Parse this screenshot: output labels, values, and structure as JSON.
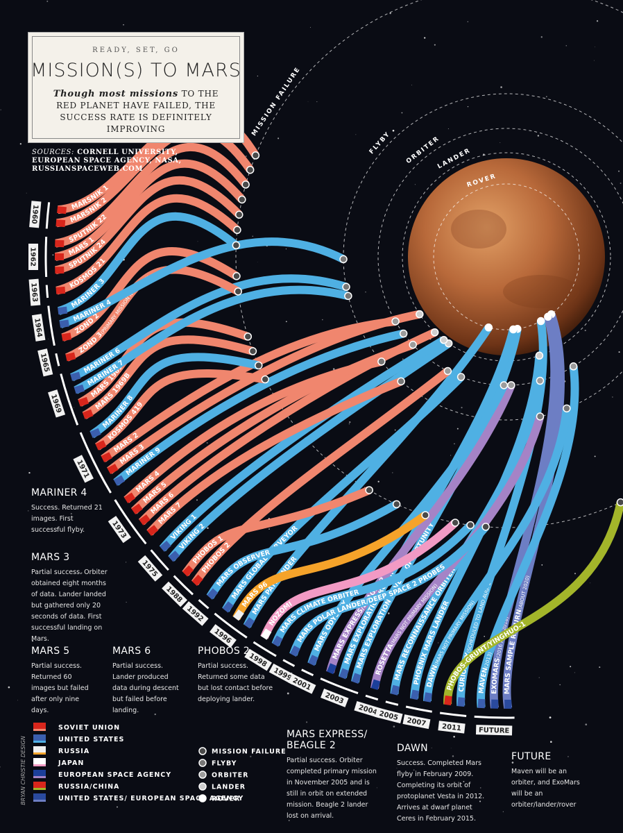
{
  "header": {
    "kicker": "READY, SET, GO",
    "title": "MISSION(S) TO MARS",
    "subtitle_lead": "Though most missions",
    "subtitle": "to the red planet have failed, the success rate is definitely improving",
    "sources_label": "SOURCES:",
    "sources": "CORNELL UNIVERSITY, EUROPEAN SPACE AGENCY, NASA, RUSSIANSPACEWEB.COM"
  },
  "agencies": [
    {
      "label": "SOVIET UNION",
      "color": "#f0866e"
    },
    {
      "label": "UNITED STATES",
      "color": "#4fb0e3"
    },
    {
      "label": "RUSSIA",
      "color": "#f5a32a"
    },
    {
      "label": "JAPAN",
      "color": "#f29ac4"
    },
    {
      "label": "EUROPEAN SPACE AGENCY",
      "color": "#a583c6"
    },
    {
      "label": "RUSSIA/CHINA",
      "color": "#a3b52a"
    },
    {
      "label": "UNITED STATES/ EUROPEAN SPACE AGENCY",
      "color": "#6d7ec4"
    }
  ],
  "outcomes": [
    {
      "label": "MISSION FAILURE",
      "color": "#4a4a4a"
    },
    {
      "label": "FLYBY",
      "color": "#777777"
    },
    {
      "label": "ORBITER",
      "color": "#9c9c9c"
    },
    {
      "label": "LANDER",
      "color": "#cfcfcf"
    },
    {
      "label": "ROVER",
      "color": "#ffffff"
    }
  ],
  "missions": [
    {
      "name": "MARSNIK 1",
      "agency": "SOVIET UNION",
      "outcome": "MISSION FAILURE",
      "year": "1960"
    },
    {
      "name": "MARSNIK 2",
      "agency": "SOVIET UNION",
      "outcome": "MISSION FAILURE",
      "year": "1960"
    },
    {
      "name": "SPUTNIK 22",
      "agency": "SOVIET UNION",
      "outcome": "MISSION FAILURE",
      "year": "1962"
    },
    {
      "name": "MARS 1",
      "agency": "SOVIET UNION",
      "outcome": "MISSION FAILURE",
      "year": "1962"
    },
    {
      "name": "SPUTNIK 24",
      "agency": "SOVIET UNION",
      "outcome": "MISSION FAILURE",
      "year": "1962"
    },
    {
      "name": "KOSMOS 21",
      "agency": "SOVIET UNION",
      "outcome": "MISSION FAILURE",
      "year": "1963"
    },
    {
      "name": "MARINER 3",
      "agency": "UNITED STATES",
      "outcome": "MISSION FAILURE",
      "year": "1964"
    },
    {
      "name": "MARINER 4",
      "agency": "UNITED STATES",
      "outcome": "FLYBY",
      "year": "1964"
    },
    {
      "name": "ZOND 2",
      "agency": "SOVIET UNION",
      "outcome": "MISSION FAILURE",
      "year": "1964"
    },
    {
      "name": "ZOND 3",
      "note": "(PRIMARY MISSION NOT MARS)",
      "agency": "SOVIET UNION",
      "outcome": "MISSION FAILURE",
      "year": "1965"
    },
    {
      "name": "MARINER 6",
      "agency": "UNITED STATES",
      "outcome": "FLYBY",
      "year": "1969"
    },
    {
      "name": "MARINER 7",
      "agency": "UNITED STATES",
      "outcome": "FLYBY",
      "year": "1969"
    },
    {
      "name": "MARS 1969A",
      "agency": "SOVIET UNION",
      "outcome": "MISSION FAILURE",
      "year": "1969"
    },
    {
      "name": "MARS 1969B",
      "agency": "SOVIET UNION",
      "outcome": "MISSION FAILURE",
      "year": "1969"
    },
    {
      "name": "MARINER 8",
      "agency": "UNITED STATES",
      "outcome": "MISSION FAILURE",
      "year": "1971"
    },
    {
      "name": "KOSMOS 419",
      "agency": "SOVIET UNION",
      "outcome": "MISSION FAILURE",
      "year": "1971"
    },
    {
      "name": "MARS 2",
      "agency": "SOVIET UNION",
      "outcome": "ORBITER",
      "year": "1971"
    },
    {
      "name": "MARS 3",
      "agency": "SOVIET UNION",
      "outcome": "LANDER",
      "year": "1971"
    },
    {
      "name": "MARINER 9",
      "agency": "UNITED STATES",
      "outcome": "ORBITER",
      "year": "1971"
    },
    {
      "name": "MARS 4",
      "agency": "SOVIET UNION",
      "outcome": "FLYBY",
      "year": "1973"
    },
    {
      "name": "MARS 5",
      "agency": "SOVIET UNION",
      "outcome": "ORBITER",
      "year": "1973"
    },
    {
      "name": "MARS 6",
      "agency": "SOVIET UNION",
      "outcome": "LANDER",
      "year": "1973"
    },
    {
      "name": "MARS 7",
      "agency": "SOVIET UNION",
      "outcome": "FLYBY",
      "year": "1973"
    },
    {
      "name": "VIKING 1",
      "agency": "UNITED STATES",
      "outcome": "LANDER",
      "year": "1975"
    },
    {
      "name": "VIKING 2",
      "agency": "UNITED STATES",
      "outcome": "LANDER",
      "year": "1975"
    },
    {
      "name": "PHOBOS 1",
      "agency": "SOVIET UNION",
      "outcome": "MISSION FAILURE",
      "year": "1988"
    },
    {
      "name": "PHOBOS 2",
      "agency": "SOVIET UNION",
      "outcome": "ORBITER",
      "year": "1988"
    },
    {
      "name": "MARS OBSERVER",
      "agency": "UNITED STATES",
      "outcome": "MISSION FAILURE",
      "year": "1992"
    },
    {
      "name": "MARS GLOBAL SURVEYOR",
      "agency": "UNITED STATES",
      "outcome": "ORBITER",
      "year": "1996"
    },
    {
      "name": "MARS 96",
      "agency": "RUSSIA",
      "outcome": "MISSION FAILURE",
      "year": "1996"
    },
    {
      "name": "MARS PATHFINDER",
      "agency": "UNITED STATES",
      "outcome": "ROVER",
      "year": "1996"
    },
    {
      "name": "NOZOMI",
      "agency": "JAPAN",
      "outcome": "MISSION FAILURE",
      "year": "1998"
    },
    {
      "name": "MARS CLIMATE ORBITER",
      "agency": "UNITED STATES",
      "outcome": "MISSION FAILURE",
      "year": "1998"
    },
    {
      "name": "MARS POLAR LANDER/DEEP SPACE 2 PROBES",
      "agency": "UNITED STATES",
      "outcome": "MISSION FAILURE",
      "year": "1999"
    },
    {
      "name": "MARS ODYSSEY",
      "agency": "UNITED STATES",
      "outcome": "ORBITER",
      "year": "2001"
    },
    {
      "name": "MARS EXPRESS/BEAGLE 2",
      "agency": "EUROPEAN SPACE AGENCY",
      "outcome": "ORBITER",
      "year": "2003"
    },
    {
      "name": "MARS EXPLORATION ROVER - SPIRIT",
      "agency": "UNITED STATES",
      "outcome": "ROVER",
      "year": "2003"
    },
    {
      "name": "MARS EXPLORATION ROVER - OPPORTUNITY",
      "agency": "UNITED STATES",
      "outcome": "ROVER",
      "year": "2003"
    },
    {
      "name": "ROSETTA",
      "note": "(MARS NOT PRIMARY MISSION)",
      "agency": "EUROPEAN SPACE AGENCY",
      "outcome": "FLYBY",
      "year": "2004"
    },
    {
      "name": "MARS RECONNAISSANCE ORBITER",
      "agency": "UNITED STATES",
      "outcome": "ORBITER",
      "year": "2005"
    },
    {
      "name": "PHOENIX MARS LANDER",
      "agency": "UNITED STATES",
      "outcome": "LANDER",
      "year": "2007"
    },
    {
      "name": "DAWN",
      "note": "(MARS NOT PRIMARY MISSION)",
      "agency": "UNITED STATES",
      "outcome": "FLYBY",
      "year": "2007"
    },
    {
      "name": "PHOBOS-GRUNT/YINGHUO-1",
      "agency": "RUSSIA/CHINA",
      "outcome": "MISSION FAILURE",
      "year": "2011"
    },
    {
      "name": "CURIOSITY",
      "note": "(SCHEDULED TO LAND AUG. 2012)",
      "agency": "UNITED STATES",
      "outcome": "ROVER",
      "year": "2011"
    },
    {
      "name": "MAVEN",
      "note": "(2013)",
      "agency": "UNITED STATES",
      "outcome": "ORBITER",
      "year": "FUTURE"
    },
    {
      "name": "EXOMARS",
      "note": "(2016 AND 2018)",
      "agency": "UNITED STATES/ EUROPEAN SPACE AGENCY",
      "outcome": "ROVER",
      "year": "FUTURE"
    },
    {
      "name": "MARS SAMPLE RETURN",
      "note": "(ABOUT 2020)",
      "agency": "UNITED STATES/ EUROPEAN SPACE AGENCY",
      "outcome": "ROVER",
      "year": "FUTURE"
    }
  ],
  "annotations": [
    {
      "title": "MARINER 4",
      "text": "Success. Returned 21 images. First successful flyby."
    },
    {
      "title": "MARS 3",
      "text": "Partial success. Orbiter obtained eight months of data. Lander landed but gathered only 20 seconds of data. First successful landing on Mars."
    },
    {
      "title": "MARS 5",
      "text": "Partial success. Returned 60 images but failed after only nine days."
    },
    {
      "title": "MARS 6",
      "text": "Partial success. Lander produced data during descent but failed before landing."
    },
    {
      "title": "PHOBOS 2",
      "text": "Partial success. Returned some data but lost contact before deploying lander."
    },
    {
      "title": "MARS EXPRESS/ BEAGLE 2",
      "text": "Partial success. Orbiter completed primary mission in November 2005 and is still in orbit on extended mission. Beagle 2 lander lost on arrival."
    },
    {
      "title": "DAWN",
      "text": "Success. Completed Mars flyby in February 2009. Completing its orbit of protoplanet Vesta in 2012. Arrives at dwarf planet Ceres in February 2015."
    },
    {
      "title": "FUTURE",
      "text": "Maven will be an orbiter, and ExoMars will be an orbiter/lander/rover"
    }
  ],
  "credit": "BRYAN CHRISTIE DESIGN"
}
